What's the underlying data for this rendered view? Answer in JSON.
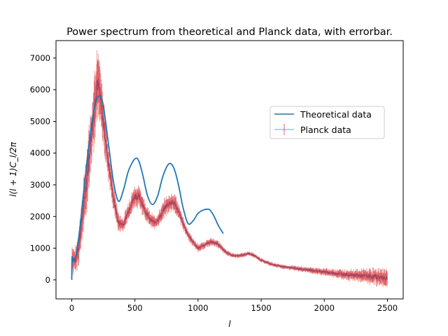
{
  "chart_data": {
    "type": "line",
    "title": "Power spectrum from theoretical and Planck data, with errorbar.",
    "xlabel": "l",
    "ylabel": "l(l + 1)C_l/2π",
    "xlim": [
      -125,
      2625
    ],
    "ylim": [
      -600,
      7550
    ],
    "xticks": [
      0,
      500,
      1000,
      1500,
      2000,
      2500
    ],
    "yticks": [
      0,
      1000,
      2000,
      3000,
      4000,
      5000,
      6000,
      7000
    ],
    "grid": false,
    "legend_position": "right",
    "series": [
      {
        "name": "Theoretical data",
        "color": "#1f77b4",
        "x": [
          0,
          2,
          10,
          30,
          60,
          100,
          150,
          190,
          220,
          250,
          290,
          330,
          370,
          410,
          450,
          500,
          530,
          560,
          600,
          640,
          680,
          720,
          760,
          790,
          820,
          850,
          880,
          920,
          960,
          1000,
          1040,
          1080,
          1100,
          1130,
          1160,
          1200
        ],
        "y": [
          0,
          700,
          600,
          700,
          1500,
          3000,
          4700,
          5600,
          5800,
          5500,
          4300,
          3100,
          2480,
          2850,
          3450,
          3820,
          3760,
          3350,
          2650,
          2380,
          2650,
          3250,
          3620,
          3650,
          3400,
          2900,
          2300,
          1780,
          1860,
          2100,
          2200,
          2230,
          2180,
          1980,
          1720,
          1460
        ]
      },
      {
        "name": "Planck data",
        "color": "#d62728",
        "x": [
          2,
          30,
          60,
          100,
          140,
          180,
          200,
          220,
          250,
          290,
          330,
          370,
          410,
          450,
          500,
          540,
          580,
          620,
          660,
          700,
          740,
          780,
          820,
          860,
          900,
          940,
          980,
          1000,
          1050,
          1100,
          1150,
          1200,
          1250,
          1300,
          1350,
          1400,
          1450,
          1500,
          1600,
          1700,
          1800,
          1900,
          2000,
          2100,
          2200,
          2300,
          2400,
          2500
        ],
        "y": [
          700,
          600,
          1200,
          2500,
          4000,
          5500,
          6300,
          5900,
          5000,
          3700,
          2600,
          1800,
          1750,
          2200,
          2650,
          2600,
          2200,
          1900,
          1800,
          2000,
          2300,
          2450,
          2400,
          2000,
          1600,
          1300,
          1100,
          1000,
          1100,
          1200,
          1150,
          950,
          800,
          750,
          780,
          840,
          760,
          620,
          470,
          400,
          350,
          300,
          250,
          200,
          160,
          130,
          100,
          60
        ],
        "err": [
          400,
          350,
          500,
          700,
          900,
          1000,
          900,
          800,
          700,
          500,
          350,
          250,
          200,
          250,
          300,
          280,
          250,
          200,
          180,
          200,
          250,
          250,
          250,
          200,
          150,
          120,
          100,
          100,
          100,
          100,
          100,
          90,
          70,
          60,
          60,
          60,
          60,
          60,
          60,
          60,
          70,
          80,
          100,
          120,
          150,
          180,
          220,
          250
        ]
      }
    ]
  }
}
